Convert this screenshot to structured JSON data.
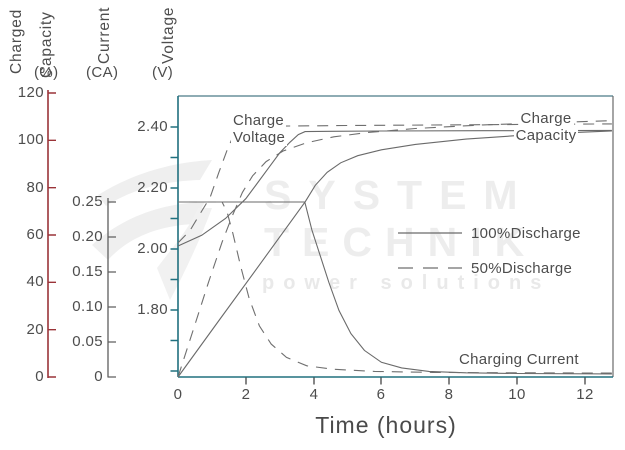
{
  "watermark": {
    "line1": "SYSTEM",
    "line2": "TECHNIK",
    "line3": "power solutions"
  },
  "axes": {
    "capacity": {
      "title_word1": "Charged",
      "title_word2": "Capacity",
      "unit": "(%)",
      "ticks": [
        "120",
        "100",
        "80",
        "60",
        "40",
        "20",
        "0"
      ],
      "color": "#9a3338"
    },
    "current": {
      "title": "Current",
      "unit": "(CA)",
      "ticks": [
        "0.25",
        "0.20",
        "0.15",
        "0.10",
        "0.05",
        "0"
      ],
      "color": "#5f5f5f"
    },
    "voltage": {
      "title": "Voltage",
      "unit": "(V)",
      "ticks": [
        "2.40",
        "2.20",
        "2.00",
        "1.80"
      ],
      "color": "#20707f"
    },
    "time": {
      "label": "Time (hours)",
      "ticks": [
        "0",
        "2",
        "4",
        "6",
        "8",
        "10",
        "12"
      ]
    }
  },
  "annotations": {
    "charge_voltage_1": "Charge",
    "charge_voltage_2": "Voltage",
    "charge_capacity_1": "Charge",
    "charge_capacity_2": "Capacity",
    "charging_current": "Charging Current"
  },
  "legend": {
    "item1": "100%Discharge",
    "item2": "50%Discharge"
  },
  "colors": {
    "curve": "#6a6a6a",
    "text": "#4d4d4d",
    "capacity_axis": "#9a3338",
    "voltage_axis": "#20707f",
    "current_axis": "#5f5f5f",
    "watermark": "#ededed"
  },
  "chart_data": {
    "type": "line",
    "xlabel": "Time (hours)",
    "x_range": [
      0,
      12.8
    ],
    "x_ticks": [
      0,
      2,
      4,
      6,
      8,
      10,
      12
    ],
    "grid": false,
    "legend_position": "middle-right",
    "y_axes": [
      {
        "name": "Charged Capacity",
        "unit": "%",
        "range": [
          0,
          120
        ]
      },
      {
        "name": "Current",
        "unit": "CA",
        "range": [
          0,
          0.25
        ]
      },
      {
        "name": "Voltage",
        "unit": "V",
        "range": [
          1.8,
          2.4
        ]
      }
    ],
    "series": [
      {
        "name": "Charge Voltage (100% discharge)",
        "axis_key": "voltage",
        "dash": false,
        "points": [
          [
            0,
            2.01
          ],
          [
            0.7,
            2.045
          ],
          [
            1.4,
            2.1
          ],
          [
            2.0,
            2.165
          ],
          [
            2.3,
            2.21
          ],
          [
            2.7,
            2.27
          ],
          [
            3.0,
            2.315
          ],
          [
            3.3,
            2.35
          ],
          [
            3.55,
            2.375
          ],
          [
            3.75,
            2.385
          ],
          [
            4.5,
            2.386
          ],
          [
            6,
            2.387
          ],
          [
            9,
            2.388
          ],
          [
            12.8,
            2.389
          ]
        ]
      },
      {
        "name": "Charge Voltage (50% discharge)",
        "axis_key": "voltage",
        "dash": true,
        "points": [
          [
            0,
            2.02
          ],
          [
            0.35,
            2.06
          ],
          [
            0.65,
            2.115
          ],
          [
            0.95,
            2.17
          ],
          [
            1.2,
            2.25
          ],
          [
            1.45,
            2.325
          ],
          [
            1.65,
            2.375
          ],
          [
            1.85,
            2.395
          ],
          [
            2.1,
            2.401
          ],
          [
            3,
            2.403
          ],
          [
            5,
            2.405
          ],
          [
            8,
            2.407
          ],
          [
            12.8,
            2.41
          ]
        ]
      },
      {
        "name": "Charge Capacity (100% discharge)",
        "axis_key": "capacity",
        "dash": false,
        "points": [
          [
            0,
            0
          ],
          [
            1.25,
            24.7
          ],
          [
            2.5,
            49.3
          ],
          [
            3.75,
            74
          ],
          [
            4.05,
            81
          ],
          [
            4.4,
            86.5
          ],
          [
            4.8,
            90.5
          ],
          [
            5.3,
            93.5
          ],
          [
            6,
            96
          ],
          [
            7,
            98.3
          ],
          [
            8.5,
            100.5
          ],
          [
            10,
            102
          ],
          [
            11.5,
            103.2
          ],
          [
            12.8,
            104
          ]
        ]
      },
      {
        "name": "Charge Capacity (50% discharge)",
        "axis_key": "capacity",
        "dash": true,
        "points": [
          [
            0,
            0
          ],
          [
            0.45,
            20
          ],
          [
            0.9,
            40
          ],
          [
            1.3,
            57
          ],
          [
            1.6,
            68
          ],
          [
            1.9,
            78
          ],
          [
            2.2,
            85
          ],
          [
            2.6,
            91
          ],
          [
            3.1,
            95.5
          ],
          [
            3.8,
            99
          ],
          [
            4.6,
            101.5
          ],
          [
            5.6,
            103.3
          ],
          [
            7,
            105
          ],
          [
            9,
            106.5
          ],
          [
            11,
            107.5
          ],
          [
            12.8,
            108.3
          ]
        ]
      },
      {
        "name": "Charging Current (100% discharge)",
        "axis_key": "current",
        "dash": false,
        "points": [
          [
            0,
            0.25
          ],
          [
            3.74,
            0.25
          ],
          [
            3.95,
            0.21
          ],
          [
            4.15,
            0.18
          ],
          [
            4.45,
            0.135
          ],
          [
            4.75,
            0.095
          ],
          [
            5.1,
            0.062
          ],
          [
            5.5,
            0.038
          ],
          [
            6.0,
            0.021
          ],
          [
            6.6,
            0.013
          ],
          [
            7.4,
            0.008
          ],
          [
            8.5,
            0.006
          ],
          [
            10,
            0.005
          ],
          [
            12.8,
            0.0045
          ]
        ]
      },
      {
        "name": "Charging Current (50% discharge)",
        "axis_key": "current",
        "dash": true,
        "points": [
          [
            0,
            0.25
          ],
          [
            1.3,
            0.25
          ],
          [
            1.45,
            0.235
          ],
          [
            1.62,
            0.205
          ],
          [
            1.85,
            0.158
          ],
          [
            2.1,
            0.112
          ],
          [
            2.4,
            0.073
          ],
          [
            2.75,
            0.047
          ],
          [
            3.2,
            0.028
          ],
          [
            3.8,
            0.016
          ],
          [
            4.6,
            0.011
          ],
          [
            5.8,
            0.008
          ],
          [
            7.5,
            0.0065
          ],
          [
            10,
            0.006
          ],
          [
            12.8,
            0.0055
          ]
        ]
      }
    ]
  }
}
